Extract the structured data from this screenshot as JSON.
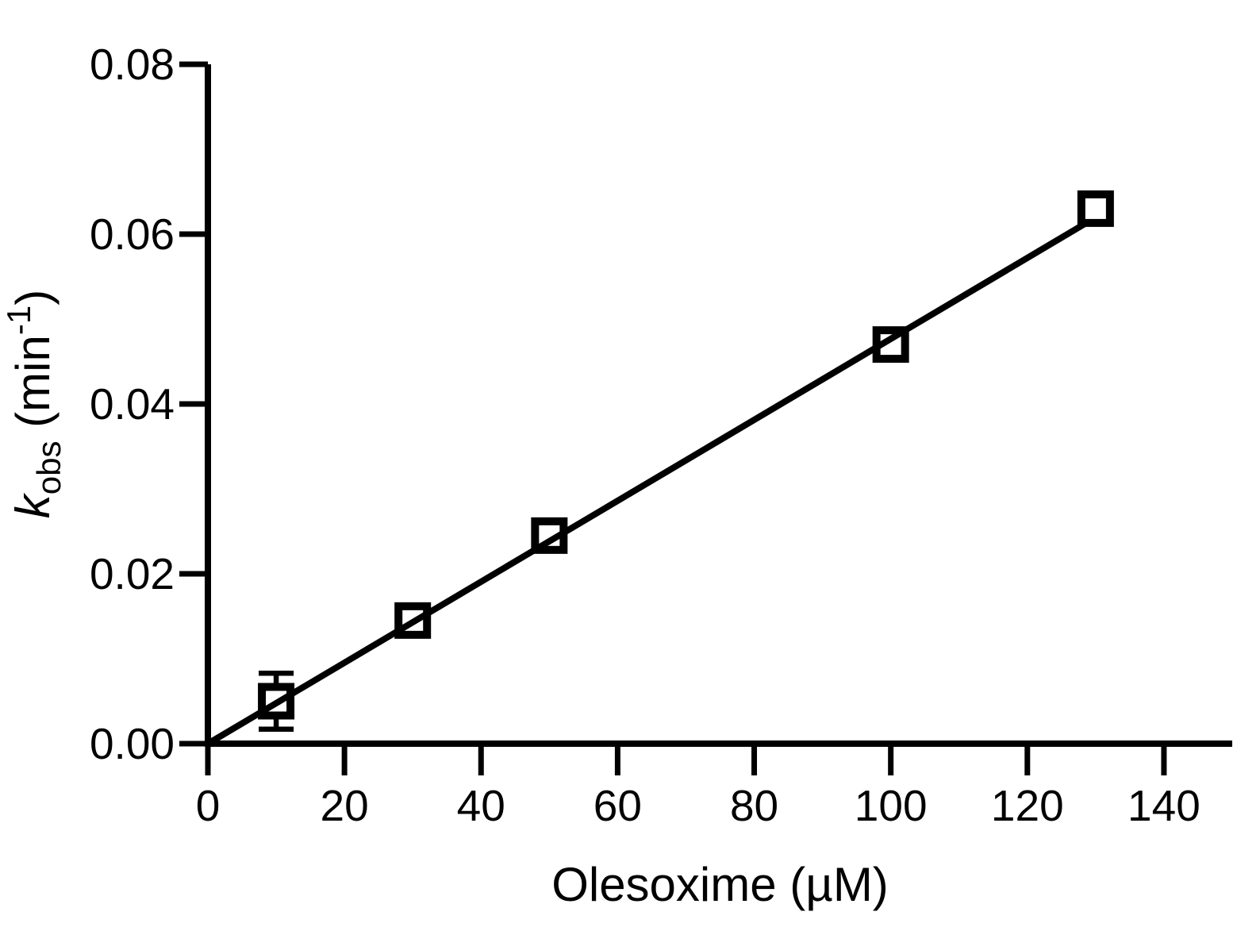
{
  "chart_data": {
    "type": "scatter",
    "title": "",
    "xlabel": "Olesoxime (µM)",
    "ylabel_parts": {
      "variable": "k",
      "variable_subscript": "obs",
      "unit_prefix": " (min",
      "unit_superscript": "-1",
      "unit_suffix": ")"
    },
    "x": [
      10,
      30,
      50,
      100,
      130
    ],
    "y": [
      0.005,
      0.0145,
      0.0245,
      0.047,
      0.063
    ],
    "y_error": [
      0.0033,
      0,
      0,
      0,
      0
    ],
    "fit_line": {
      "x1": 0,
      "y1": 0,
      "x2": 128.6,
      "y2": 0.0613
    },
    "xlim": [
      0,
      150
    ],
    "ylim": [
      0,
      0.08
    ],
    "x_ticks": [
      0,
      20,
      40,
      60,
      80,
      100,
      120,
      140
    ],
    "x_tick_labels": [
      "0",
      "20",
      "40",
      "60",
      "80",
      "100",
      "120",
      "140"
    ],
    "y_ticks": [
      0,
      0.02,
      0.04,
      0.06,
      0.08
    ],
    "y_tick_labels": [
      "0.00",
      "0.02",
      "0.04",
      "0.06",
      "0.08"
    ],
    "marker": "open-square",
    "grid": false,
    "legend": null,
    "colors": {
      "line": "#000000",
      "marker": "#000000",
      "axis": "#000000",
      "background": "#ffffff"
    }
  }
}
